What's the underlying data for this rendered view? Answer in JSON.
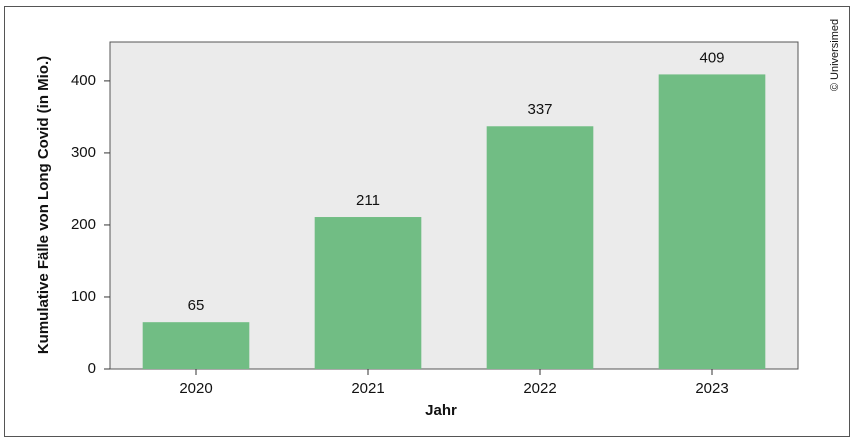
{
  "chart_data": {
    "type": "bar",
    "x_label": "Jahr",
    "y_label": "Kumulative Fälle von Long Covid (in Mio.)",
    "credit": "© Universimed",
    "categories": [
      "2020",
      "2021",
      "2022",
      "2023"
    ],
    "values": [
      65,
      211,
      337,
      409
    ],
    "color": "#71bd84",
    "ylim": [
      0,
      454
    ],
    "yticks": [
      0,
      100,
      200,
      300,
      400
    ],
    "grid": false
  }
}
